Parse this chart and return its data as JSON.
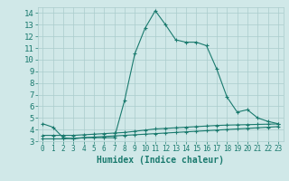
{
  "x": [
    0,
    1,
    2,
    3,
    4,
    5,
    6,
    7,
    8,
    9,
    10,
    11,
    12,
    13,
    14,
    15,
    16,
    17,
    18,
    19,
    20,
    21,
    22,
    23
  ],
  "line1": [
    4.5,
    4.2,
    3.3,
    3.2,
    3.3,
    3.3,
    3.3,
    3.3,
    6.5,
    10.5,
    12.7,
    14.2,
    13.0,
    11.7,
    11.5,
    11.5,
    11.2,
    9.2,
    6.8,
    5.5,
    5.7,
    5.0,
    4.7,
    4.5
  ],
  "line2": [
    3.5,
    3.5,
    3.5,
    3.5,
    3.55,
    3.6,
    3.65,
    3.7,
    3.75,
    3.85,
    3.95,
    4.05,
    4.1,
    4.15,
    4.2,
    4.25,
    4.3,
    4.35,
    4.38,
    4.4,
    4.42,
    4.44,
    4.46,
    4.48
  ],
  "line3": [
    3.2,
    3.2,
    3.2,
    3.25,
    3.3,
    3.35,
    3.4,
    3.45,
    3.5,
    3.55,
    3.6,
    3.65,
    3.7,
    3.75,
    3.8,
    3.85,
    3.9,
    3.95,
    4.0,
    4.05,
    4.1,
    4.15,
    4.2,
    4.25
  ],
  "line_color": "#1a7a6e",
  "bg_color": "#d0e8e8",
  "grid_color": "#aacccc",
  "xlabel": "Humidex (Indice chaleur)",
  "ylim": [
    3,
    14.5
  ],
  "xlim": [
    -0.5,
    23.5
  ],
  "yticks": [
    3,
    4,
    5,
    6,
    7,
    8,
    9,
    10,
    11,
    12,
    13,
    14
  ],
  "xticks": [
    0,
    1,
    2,
    3,
    4,
    5,
    6,
    7,
    8,
    9,
    10,
    11,
    12,
    13,
    14,
    15,
    16,
    17,
    18,
    19,
    20,
    21,
    22,
    23
  ],
  "xlabel_fontsize": 7,
  "tick_fontsize": 5.5,
  "ytick_fontsize": 6.5
}
